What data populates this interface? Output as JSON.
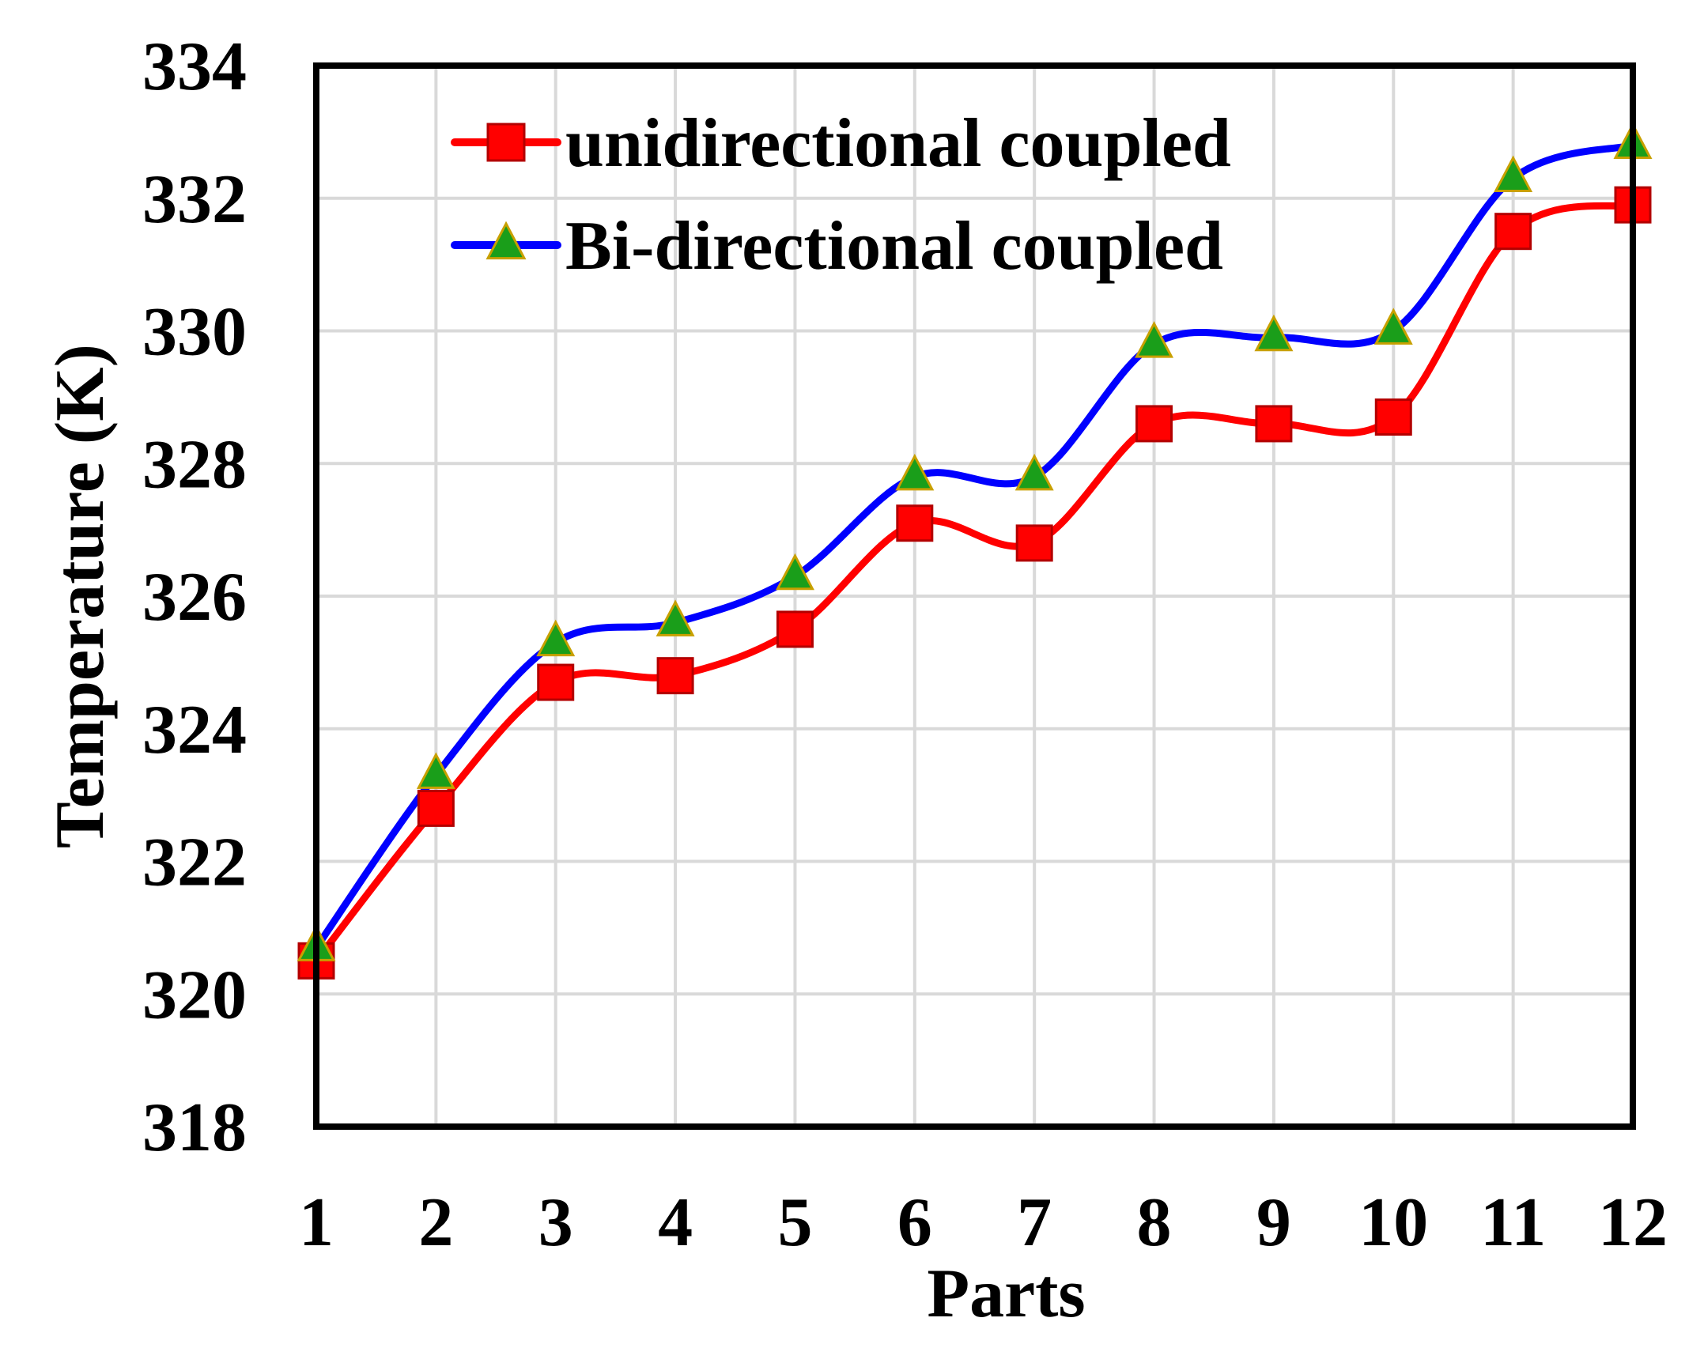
{
  "chart_data": {
    "type": "line",
    "xlabel": "Parts",
    "ylabel": "Temperature (K)",
    "categories": [
      "1",
      "2",
      "3",
      "4",
      "5",
      "6",
      "7",
      "8",
      "9",
      "10",
      "11",
      "12"
    ],
    "ylim": [
      318,
      334
    ],
    "yticks": [
      "318",
      "320",
      "322",
      "324",
      "326",
      "328",
      "330",
      "332",
      "334"
    ],
    "grid": true,
    "smooth": true,
    "legend_position": "top-left",
    "series": [
      {
        "name": "unidirectional coupled",
        "color": "#ff0000",
        "marker": "square",
        "marker_color": "#ff0000",
        "values": [
          320.5,
          322.8,
          324.7,
          324.8,
          325.5,
          327.1,
          326.8,
          328.6,
          328.6,
          328.7,
          331.5,
          331.9
        ]
      },
      {
        "name": "Bi-directional coupled",
        "color": "#0000ff",
        "marker": "triangle",
        "marker_color": "#1a9e1a",
        "values": [
          320.7,
          323.3,
          325.3,
          325.6,
          326.3,
          327.8,
          327.8,
          329.8,
          329.9,
          330.0,
          332.3,
          332.8
        ]
      }
    ]
  }
}
